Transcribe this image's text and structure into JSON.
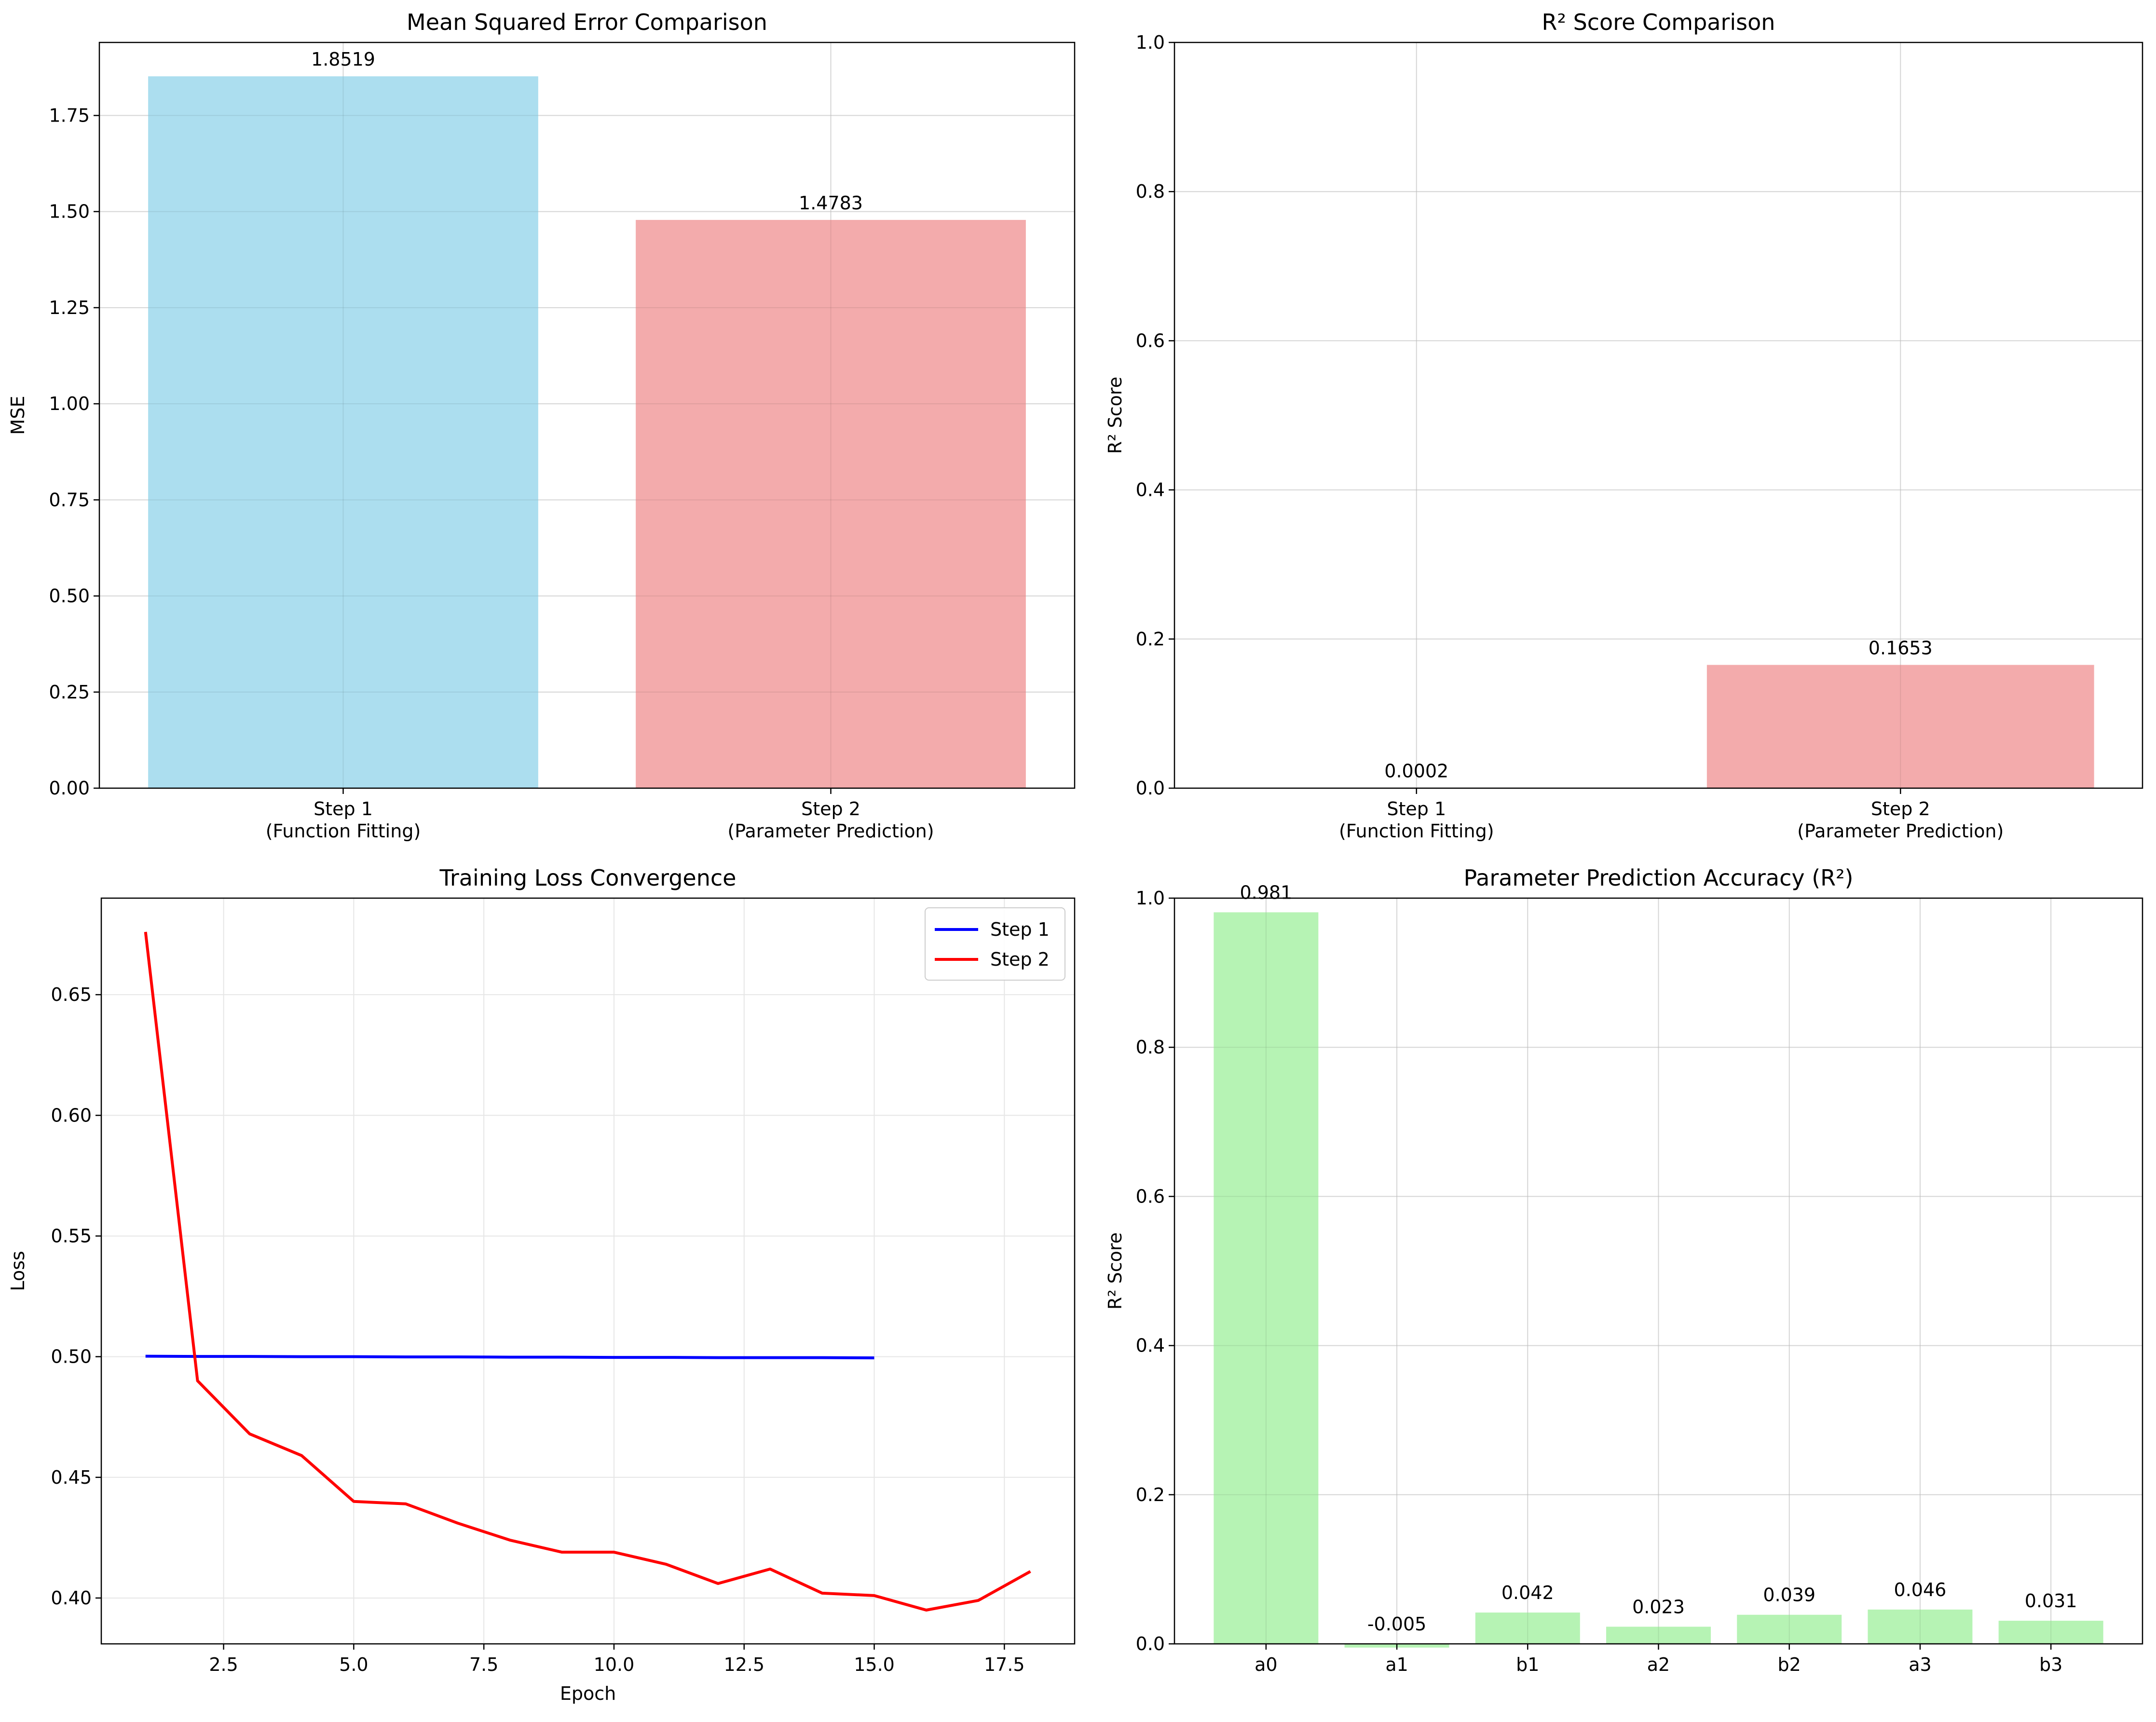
{
  "chart_data": [
    {
      "type": "bar",
      "title": "Mean Squared Error Comparison",
      "xlabel": "",
      "ylabel": "MSE",
      "categories": [
        "Step 1\n(Function Fitting)",
        "Step 2\n(Parameter Prediction)"
      ],
      "values": [
        1.8519,
        1.4783
      ],
      "data_labels": [
        "1.8519",
        "1.4783"
      ],
      "colors": [
        "#a8dcee",
        "#f2a6a8"
      ],
      "ylim": [
        0,
        1.94
      ],
      "yticks": [
        "0.00",
        "0.25",
        "0.50",
        "0.75",
        "1.00",
        "1.25",
        "1.50",
        "1.75"
      ],
      "grid": true
    },
    {
      "type": "bar",
      "title": "R² Score Comparison",
      "xlabel": "",
      "ylabel": "R² Score",
      "categories": [
        "Step 1\n(Function Fitting)",
        "Step 2\n(Parameter Prediction)"
      ],
      "values": [
        0.0002,
        0.1653
      ],
      "data_labels": [
        "0.0002",
        "0.1653"
      ],
      "colors": [
        "#a8dcee",
        "#f2a6a8"
      ],
      "ylim": [
        0,
        1.0
      ],
      "yticks": [
        "0.0",
        "0.2",
        "0.4",
        "0.6",
        "0.8",
        "1.0"
      ],
      "grid": true
    },
    {
      "type": "line",
      "title": "Training Loss Convergence",
      "xlabel": "Epoch",
      "ylabel": "Loss",
      "xlim": [
        0.15,
        18.85
      ],
      "ylim": [
        0.381,
        0.69
      ],
      "xticks": [
        "2.5",
        "5.0",
        "7.5",
        "10.0",
        "12.5",
        "15.0",
        "17.5"
      ],
      "yticks": [
        "0.40",
        "0.45",
        "0.50",
        "0.55",
        "0.60",
        "0.65"
      ],
      "legend": "top-right",
      "grid": true,
      "series": [
        {
          "name": "Step 1",
          "color": "#0000ff",
          "x": [
            1,
            2,
            3,
            4,
            5,
            6,
            7,
            8,
            9,
            10,
            11,
            12,
            13,
            14,
            15
          ],
          "y": [
            0.5002,
            0.5001,
            0.5001,
            0.5,
            0.5,
            0.4999,
            0.4999,
            0.4998,
            0.4998,
            0.4997,
            0.4997,
            0.4996,
            0.4996,
            0.4996,
            0.4995
          ]
        },
        {
          "name": "Step 2",
          "color": "#ff0000",
          "x": [
            1,
            2,
            3,
            4,
            5,
            6,
            7,
            8,
            9,
            10,
            11,
            12,
            13,
            14,
            15,
            16,
            17,
            18
          ],
          "y": [
            0.676,
            0.49,
            0.468,
            0.459,
            0.44,
            0.439,
            0.431,
            0.424,
            0.419,
            0.419,
            0.414,
            0.406,
            0.412,
            0.402,
            0.401,
            0.395,
            0.399,
            0.411
          ]
        }
      ]
    },
    {
      "type": "bar",
      "title": "Parameter Prediction Accuracy (R²)",
      "xlabel": "",
      "ylabel": "R² Score",
      "categories": [
        "a0",
        "a1",
        "b1",
        "a2",
        "b2",
        "a3",
        "b3"
      ],
      "values": [
        0.981,
        -0.005,
        0.042,
        0.023,
        0.039,
        0.046,
        0.031
      ],
      "data_labels": [
        "0.981",
        "-0.005",
        "0.042",
        "0.023",
        "0.039",
        "0.046",
        "0.031"
      ],
      "colors": [
        "#b2f2b0"
      ],
      "ylim": [
        0,
        1.0
      ],
      "yticks": [
        "0.0",
        "0.2",
        "0.4",
        "0.6",
        "0.8",
        "1.0"
      ],
      "grid": true
    }
  ]
}
